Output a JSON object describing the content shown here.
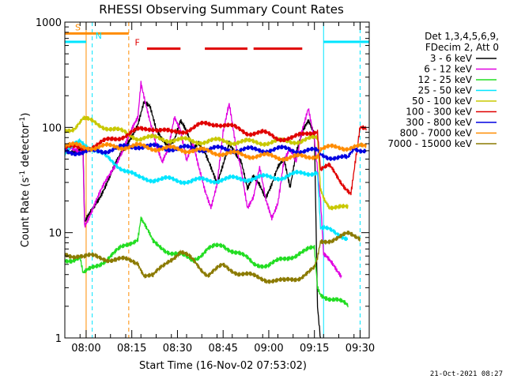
{
  "chart_data": {
    "type": "line",
    "title": "RHESSI Observing Summary Count Rates",
    "xlabel": "Start Time (16-Nov-02 07:53:02)",
    "ylabel_main": "Count Rate (s",
    "ylabel_sup1": "-1",
    "ylabel_mid": " detector",
    "ylabel_sup2": "-1",
    "ylabel_end": ")",
    "yscale": "log",
    "ylim": [
      1,
      1000
    ],
    "xlim": [
      "07:53",
      "09:33"
    ],
    "x_ticks": [
      {
        "label": "08:00",
        "t": "08:00"
      },
      {
        "label": "08:15",
        "t": "08:15"
      },
      {
        "label": "08:30",
        "t": "08:30"
      },
      {
        "label": "08:45",
        "t": "08:45"
      },
      {
        "label": "09:00",
        "t": "09:00"
      },
      {
        "label": "09:15",
        "t": "09:15"
      },
      {
        "label": "09:30",
        "t": "09:30"
      }
    ],
    "y_ticks": [
      {
        "label": "1000",
        "v": 1000
      },
      {
        "label": "100",
        "v": 100
      },
      {
        "label": "10",
        "v": 10
      },
      {
        "label": "1",
        "v": 1
      }
    ],
    "legend_header": [
      "Det 1,3,4,5,6,9,",
      "FDecim 2, Att 0"
    ],
    "legend_placement": "right",
    "footer_date": "21-Oct-2021 08:27",
    "flags": [
      {
        "letter": "S",
        "color": "#ff8c00",
        "segments": [
          [
            "07:53",
            "08:02"
          ],
          [
            "08:02",
            "08:14"
          ]
        ],
        "level": 780
      },
      {
        "letter": "N",
        "color": "#00e5ff",
        "segments": [
          [
            "07:53",
            "08:00"
          ],
          [
            "09:18",
            "09:33"
          ]
        ],
        "level": 650
      },
      {
        "letter": "F",
        "color": "#e00000",
        "segments": [
          [
            "08:20",
            "08:31"
          ],
          [
            "08:39",
            "08:53"
          ],
          [
            "08:55",
            "09:11"
          ]
        ],
        "level": 560
      }
    ],
    "vlines": [
      {
        "t": "08:00",
        "color": "#ff8c00",
        "dash": false
      },
      {
        "t": "08:02",
        "color": "#00e5ff",
        "dash": true
      },
      {
        "t": "08:14",
        "color": "#ff8c00",
        "dash": true
      },
      {
        "t": "09:18",
        "color": "#00e5ff",
        "dash": false
      },
      {
        "t": "09:30",
        "color": "#00e5ff",
        "dash": true
      }
    ],
    "gaps": [
      [
        "08:00",
        "08:17"
      ]
    ],
    "series": [
      {
        "name": "3 - 6 keV",
        "color": "#000000",
        "x": [
          "07:53",
          "07:56",
          "07:59",
          "07:59:30",
          "08:17",
          "08:19",
          "08:21",
          "08:23",
          "08:25",
          "08:27",
          "08:29",
          "08:31",
          "08:33",
          "08:35",
          "08:37",
          "08:39",
          "08:41",
          "08:43",
          "08:45",
          "08:47",
          "08:49",
          "08:51",
          "08:53",
          "08:55",
          "08:57",
          "08:59",
          "09:01",
          "09:03",
          "09:05",
          "09:07",
          "09:09",
          "09:11",
          "09:13",
          "09:15",
          "09:16",
          "09:17"
        ],
        "y": [
          62,
          60,
          58,
          12,
          110,
          170,
          150,
          95,
          80,
          70,
          75,
          110,
          90,
          65,
          75,
          58,
          40,
          28,
          45,
          75,
          58,
          45,
          25,
          35,
          30,
          22,
          28,
          40,
          50,
          28,
          60,
          90,
          110,
          85,
          2,
          1
        ]
      },
      {
        "name": "6 - 12 keV",
        "color": "#e000e0",
        "x": [
          "07:53",
          "07:56",
          "07:59",
          "07:59:30",
          "08:17",
          "08:18",
          "08:19",
          "08:21",
          "08:23",
          "08:25",
          "08:27",
          "08:29",
          "08:31",
          "08:33",
          "08:35",
          "08:37",
          "08:39",
          "08:41",
          "08:43",
          "08:45",
          "08:47",
          "08:49",
          "08:51",
          "08:53",
          "08:55",
          "08:57",
          "08:59",
          "09:01",
          "09:03",
          "09:05",
          "09:07",
          "09:09",
          "09:11",
          "09:13",
          "09:15",
          "09:16",
          "09:17",
          "09:18",
          "09:21",
          "09:24"
        ],
        "y": [
          62,
          60,
          58,
          12,
          120,
          260,
          200,
          120,
          70,
          45,
          60,
          125,
          100,
          50,
          70,
          40,
          25,
          18,
          30,
          90,
          160,
          70,
          40,
          18,
          22,
          40,
          20,
          14,
          20,
          50,
          60,
          45,
          95,
          160,
          80,
          40,
          20,
          6,
          5,
          4
        ]
      },
      {
        "name": "12 - 25 keV",
        "color": "#22dd22",
        "x": [
          "07:53",
          "07:58",
          "07:59",
          "08:17",
          "08:18",
          "08:22",
          "08:28",
          "08:35",
          "08:40",
          "08:45",
          "08:50",
          "08:55",
          "09:00",
          "09:05",
          "09:10",
          "09:15",
          "09:16",
          "09:17",
          "09:22",
          "09:26"
        ],
        "y": [
          5.5,
          5.8,
          4,
          9,
          14,
          8,
          6.5,
          5.5,
          7,
          7.5,
          6.5,
          5,
          5,
          5.5,
          6.5,
          7,
          3,
          2.6,
          2.3,
          2
        ]
      },
      {
        "name": "25 - 50 keV",
        "color": "#00e5ff",
        "x": [
          "07:53",
          "07:58",
          "07:59",
          "08:17",
          "08:25",
          "08:35",
          "08:45",
          "08:55",
          "09:05",
          "09:12",
          "09:16",
          "09:17",
          "09:22",
          "09:26"
        ],
        "y": [
          55,
          75,
          72,
          33,
          32,
          31,
          32,
          33,
          34,
          37,
          38,
          11,
          10,
          9
        ]
      },
      {
        "name": "50 - 100 keV",
        "color": "#c8c800",
        "x": [
          "07:53",
          "07:56",
          "07:59",
          "08:17",
          "08:25",
          "08:35",
          "08:45",
          "08:55",
          "09:05",
          "09:12",
          "09:16",
          "09:17",
          "09:18",
          "09:20",
          "09:24",
          "09:26"
        ],
        "y": [
          93,
          100,
          120,
          80,
          78,
          74,
          74,
          72,
          73,
          76,
          78,
          26,
          22,
          18,
          17,
          17
        ]
      },
      {
        "name": "100 - 300 keV",
        "color": "#e00000",
        "x": [
          "07:53",
          "07:58",
          "07:59",
          "08:17",
          "08:22",
          "08:28",
          "08:33",
          "08:38",
          "08:43",
          "08:48",
          "08:53",
          "08:58",
          "09:03",
          "09:08",
          "09:13",
          "09:16",
          "09:17",
          "09:20",
          "09:24",
          "09:27",
          "09:30",
          "09:32"
        ],
        "y": [
          65,
          63,
          62,
          93,
          100,
          88,
          95,
          105,
          110,
          100,
          90,
          88,
          80,
          78,
          90,
          94,
          40,
          42,
          30,
          24,
          95,
          95
        ]
      },
      {
        "name": "300 - 800 keV",
        "color": "#0000e0",
        "x": [
          "07:53",
          "07:58",
          "07:59",
          "08:17",
          "08:25",
          "08:35",
          "08:45",
          "08:55",
          "09:05",
          "09:12",
          "09:16",
          "09:17",
          "09:22",
          "09:26",
          "09:28",
          "09:32"
        ],
        "y": [
          60,
          58,
          57,
          67,
          64,
          63,
          62,
          61,
          62,
          60,
          59,
          55,
          52,
          50,
          63,
          62
        ]
      },
      {
        "name": "800 - 7000 keV",
        "color": "#ff8c00",
        "x": [
          "07:53",
          "07:58",
          "07:59",
          "08:17",
          "08:25",
          "08:35",
          "08:45",
          "08:55",
          "09:05",
          "09:12",
          "09:16",
          "09:17",
          "09:22",
          "09:26",
          "09:28",
          "09:32"
        ],
        "y": [
          68,
          66,
          65,
          66,
          63,
          61,
          57,
          54,
          52,
          52,
          55,
          63,
          64,
          65,
          66,
          64
        ]
      },
      {
        "name": "7000 - 15000 keV",
        "color": "#8b7a00",
        "x": [
          "07:53",
          "07:58",
          "07:59",
          "08:17",
          "08:19",
          "08:22",
          "08:27",
          "08:31",
          "08:35",
          "08:40",
          "08:45",
          "08:50",
          "08:55",
          "09:00",
          "09:05",
          "09:10",
          "09:15",
          "09:16",
          "09:17",
          "09:22",
          "09:26",
          "09:30"
        ],
        "y": [
          6,
          6.2,
          6,
          5.3,
          4,
          3.8,
          5.5,
          6.5,
          5.5,
          4,
          4.8,
          4.2,
          3.8,
          3.6,
          3.4,
          3.8,
          4.5,
          5.5,
          8,
          9,
          9.5,
          9
        ]
      }
    ]
  }
}
